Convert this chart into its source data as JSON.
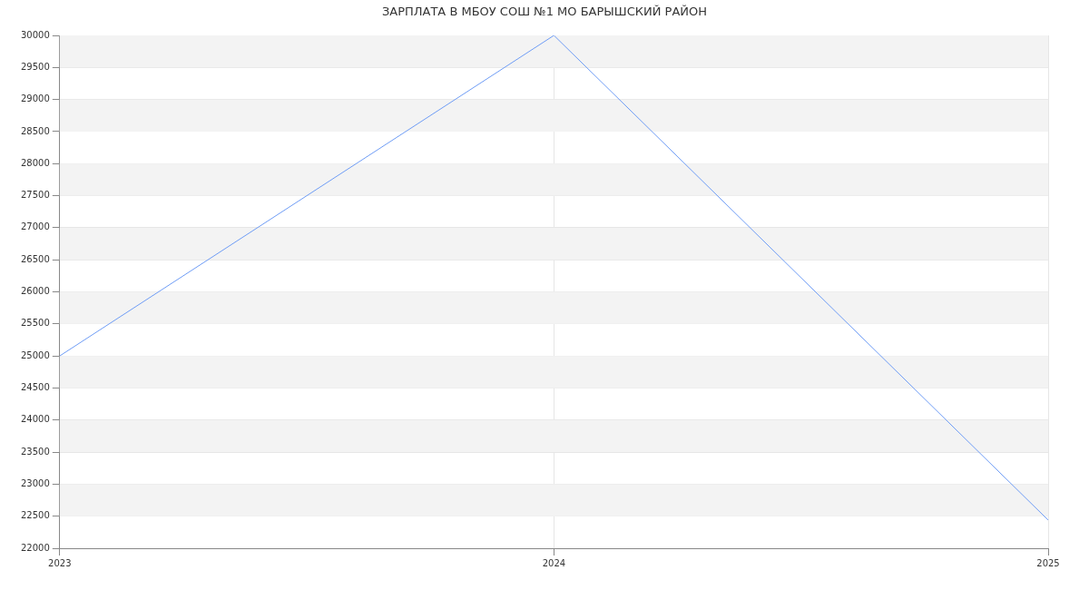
{
  "chart_data": {
    "type": "line",
    "title": "ЗАРПЛАТА В МБОУ СОШ №1 МО БАРЫШСКИЙ РАЙОН",
    "x": [
      2023,
      2024,
      2025
    ],
    "series": [
      {
        "color": "#6e9cf5",
        "values": [
          25000,
          30000,
          22440
        ]
      }
    ],
    "xlim": [
      2023,
      2025
    ],
    "xticks": [
      2023,
      2024,
      2025
    ],
    "ylim": [
      22000,
      30000
    ],
    "yticks": [
      22000,
      22500,
      23000,
      23500,
      24000,
      24500,
      25000,
      25500,
      26000,
      26500,
      27000,
      27500,
      28000,
      28500,
      29000,
      29500,
      30000
    ],
    "grid": true,
    "legend": false,
    "marker": "none",
    "line_style": "solid"
  }
}
